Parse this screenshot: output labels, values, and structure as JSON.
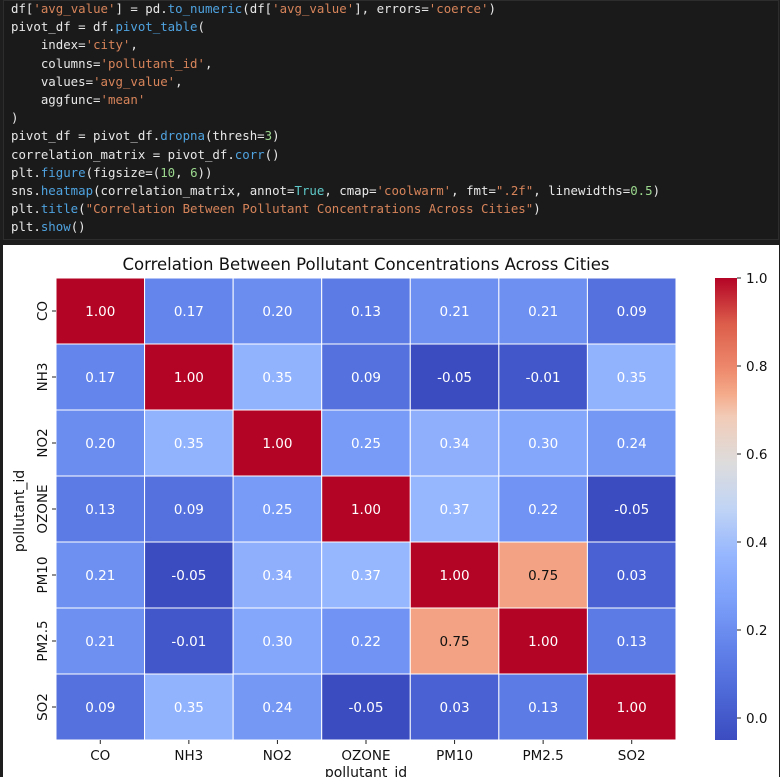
{
  "code": {
    "lines": [
      [
        [
          "df[",
          "p"
        ],
        [
          "'avg_value'",
          "s"
        ],
        [
          "] = pd.",
          "p"
        ],
        [
          "to_numeric",
          "f"
        ],
        [
          "(df[",
          "p"
        ],
        [
          "'avg_value'",
          "s"
        ],
        [
          "], errors=",
          "p"
        ],
        [
          "'coerce'",
          "s"
        ],
        [
          ")",
          "p"
        ]
      ],
      [
        [
          "pivot_df = df.",
          "p"
        ],
        [
          "pivot_table",
          "f"
        ],
        [
          "(",
          "p"
        ]
      ],
      [
        [
          "    index=",
          "p"
        ],
        [
          "'city'",
          "s"
        ],
        [
          ",",
          "p"
        ]
      ],
      [
        [
          "    columns=",
          "p"
        ],
        [
          "'pollutant_id'",
          "s"
        ],
        [
          ",",
          "p"
        ]
      ],
      [
        [
          "    values=",
          "p"
        ],
        [
          "'avg_value'",
          "s"
        ],
        [
          ",",
          "p"
        ]
      ],
      [
        [
          "    aggfunc=",
          "p"
        ],
        [
          "'mean'",
          "s"
        ]
      ],
      [
        [
          ")",
          "p"
        ]
      ],
      [
        [
          "pivot_df = pivot_df.",
          "p"
        ],
        [
          "dropna",
          "f"
        ],
        [
          "(thresh=",
          "p"
        ],
        [
          "3",
          "n"
        ],
        [
          ")",
          "p"
        ]
      ],
      [
        [
          "correlation_matrix = pivot_df.",
          "p"
        ],
        [
          "corr",
          "f"
        ],
        [
          "()",
          "p"
        ]
      ],
      [
        [
          "plt.",
          "p"
        ],
        [
          "figure",
          "f"
        ],
        [
          "(figsize=(",
          "p"
        ],
        [
          "10",
          "n"
        ],
        [
          ", ",
          "p"
        ],
        [
          "6",
          "n"
        ],
        [
          "))",
          "p"
        ]
      ],
      [
        [
          "sns.",
          "p"
        ],
        [
          "heatmap",
          "f"
        ],
        [
          "(correlation_matrix, annot=",
          "p"
        ],
        [
          "True",
          "k"
        ],
        [
          ", cmap=",
          "p"
        ],
        [
          "'coolwarm'",
          "s"
        ],
        [
          ", fmt=",
          "p"
        ],
        [
          "\".2f\"",
          "s"
        ],
        [
          ", linewidths=",
          "p"
        ],
        [
          "0.5",
          "n"
        ],
        [
          ")",
          "p"
        ]
      ],
      [
        [
          "plt.",
          "p"
        ],
        [
          "title",
          "f"
        ],
        [
          "(",
          "p"
        ],
        [
          "\"Correlation Between Pollutant Concentrations Across Cities\"",
          "s"
        ],
        [
          ")",
          "p"
        ]
      ],
      [
        [
          "plt.",
          "p"
        ],
        [
          "show",
          "f"
        ],
        [
          "()",
          "p"
        ]
      ]
    ]
  },
  "chart_data": {
    "type": "heatmap",
    "title": "Correlation Between Pollutant Concentrations Across Cities",
    "xlabel": "pollutant_id",
    "ylabel": "pollutant_id",
    "categories": [
      "CO",
      "NH3",
      "NO2",
      "OZONE",
      "PM10",
      "PM2.5",
      "SO2"
    ],
    "values": [
      [
        1.0,
        0.17,
        0.2,
        0.13,
        0.21,
        0.21,
        0.09
      ],
      [
        0.17,
        1.0,
        0.35,
        0.09,
        -0.05,
        -0.01,
        0.35
      ],
      [
        0.2,
        0.35,
        1.0,
        0.25,
        0.34,
        0.3,
        0.24
      ],
      [
        0.13,
        0.09,
        0.25,
        1.0,
        0.37,
        0.22,
        -0.05
      ],
      [
        0.21,
        -0.05,
        0.34,
        0.37,
        1.0,
        0.75,
        0.03
      ],
      [
        0.21,
        -0.01,
        0.3,
        0.22,
        0.75,
        1.0,
        0.13
      ],
      [
        0.09,
        0.35,
        0.24,
        -0.05,
        0.03,
        0.13,
        1.0
      ]
    ],
    "value_format": ".2f",
    "colormap": "coolwarm",
    "colorbar": {
      "range": [
        -0.05,
        1.0
      ],
      "ticks": [
        0.0,
        0.2,
        0.4,
        0.6,
        0.8,
        1.0
      ],
      "tick_labels": [
        "0.0",
        "0.2",
        "0.4",
        "0.6",
        "0.8",
        "1.0"
      ]
    }
  },
  "colors": {
    "code_background": "#1a1a1a",
    "string": "#d7845a",
    "function": "#4fa3e0",
    "keyword": "#5fc9c9",
    "number": "#9bd88e",
    "plain": "#e8e8e8"
  }
}
